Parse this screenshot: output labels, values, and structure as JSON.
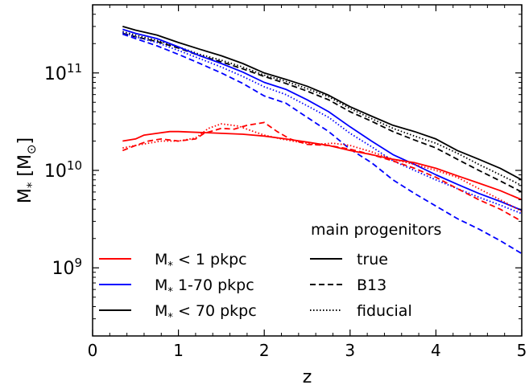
{
  "chart_data": {
    "type": "line",
    "xlabel": "z",
    "ylabel": {
      "base": "M",
      "sub": "*",
      "unit_open": " [M",
      "unit_sub": "⊙",
      "unit_close": "]"
    },
    "xlim": [
      0,
      5
    ],
    "ylim": [
      200000000.0,
      500000000000.0
    ],
    "yscale": "log",
    "grid": false,
    "xticks": [
      0,
      1,
      2,
      3,
      4,
      5
    ],
    "xtick_labels": [
      "0",
      "1",
      "2",
      "3",
      "4",
      "5"
    ],
    "yticks": [
      {
        "value": 1000000000.0,
        "base": "10",
        "exp": "9"
      },
      {
        "value": 10000000000.0,
        "base": "10",
        "exp": "10"
      },
      {
        "value": 100000000000.0,
        "base": "10",
        "exp": "11"
      }
    ],
    "colors": {
      "inner": "#ff0000",
      "outer": "#0000ff",
      "total": "#000000"
    },
    "legend_color": {
      "placement": "lower-left",
      "entries": [
        {
          "key": "inner",
          "prefix": "M",
          "sub": "*",
          "text": " < 1 pkpc"
        },
        {
          "key": "outer",
          "prefix": "M",
          "sub": "*",
          "text": " 1-70 pkpc"
        },
        {
          "key": "total",
          "prefix": "M",
          "sub": "*",
          "text": " < 70 pkpc"
        }
      ]
    },
    "legend_style": {
      "placement": "lower-right",
      "title": "main progenitors",
      "entries": [
        {
          "key": "solid",
          "label": "true"
        },
        {
          "key": "dashed",
          "label": "B13"
        },
        {
          "key": "dotted",
          "label": "fiducial"
        }
      ]
    },
    "series": [
      {
        "color": "total",
        "style": "solid",
        "x": [
          0.35,
          0.5,
          0.75,
          1.0,
          1.25,
          1.5,
          1.75,
          2.0,
          2.25,
          2.5,
          2.75,
          3.0,
          3.25,
          3.5,
          3.75,
          4.0,
          4.25,
          4.5,
          4.75,
          5.0
        ],
        "y": [
          300000000000.0,
          275000000000.0,
          245000000000.0,
          205000000000.0,
          175000000000.0,
          150000000000.0,
          125000000000.0,
          100000000000.0,
          86000000000.0,
          73000000000.0,
          59000000000.0,
          45000000000.0,
          36000000000.0,
          29000000000.0,
          25000000000.0,
          21000000000.0,
          16000000000.0,
          13000000000.0,
          10500000000.0,
          8000000000.0
        ]
      },
      {
        "color": "total",
        "style": "dashed",
        "x": [
          0.35,
          0.5,
          0.75,
          1.0,
          1.25,
          1.5,
          1.75,
          2.0,
          2.25,
          2.5,
          2.75,
          3.0,
          3.25,
          3.5,
          3.75,
          4.0,
          4.25,
          4.5,
          4.75,
          5.0
        ],
        "y": [
          255000000000.0,
          235000000000.0,
          210000000000.0,
          180000000000.0,
          150000000000.0,
          130000000000.0,
          110000000000.0,
          92000000000.0,
          78000000000.0,
          65000000000.0,
          53000000000.0,
          40000000000.0,
          32000000000.0,
          25000000000.0,
          20500000000.0,
          17000000000.0,
          13000000000.0,
          10000000000.0,
          7800000000.0,
          6000000000.0
        ]
      },
      {
        "color": "total",
        "style": "dotted",
        "x": [
          0.35,
          0.5,
          0.75,
          1.0,
          1.25,
          1.5,
          1.75,
          2.0,
          2.25,
          2.5,
          2.75,
          3.0,
          3.25,
          3.5,
          3.75,
          4.0,
          4.25,
          4.5,
          4.75,
          5.0
        ],
        "y": [
          265000000000.0,
          245000000000.0,
          215000000000.0,
          185000000000.0,
          155000000000.0,
          135000000000.0,
          115000000000.0,
          95000000000.0,
          82000000000.0,
          69000000000.0,
          57000000000.0,
          43000000000.0,
          34000000000.0,
          27000000000.0,
          22500000000.0,
          19000000000.0,
          15000000000.0,
          11500000000.0,
          9000000000.0,
          7000000000.0
        ]
      },
      {
        "color": "outer",
        "style": "solid",
        "x": [
          0.35,
          0.5,
          0.75,
          1.0,
          1.25,
          1.5,
          1.75,
          2.0,
          2.25,
          2.5,
          2.75,
          3.0,
          3.25,
          3.5,
          3.75,
          4.0,
          4.25,
          4.5,
          4.75,
          5.0
        ],
        "y": [
          280000000000.0,
          255000000000.0,
          225000000000.0,
          185000000000.0,
          150000000000.0,
          125000000000.0,
          102000000000.0,
          80000000000.0,
          68000000000.0,
          53000000000.0,
          40000000000.0,
          28000000000.0,
          20000000000.0,
          14500000000.0,
          11500000000.0,
          9000000000.0,
          7200000000.0,
          5800000000.0,
          4800000000.0,
          3900000000.0
        ]
      },
      {
        "color": "outer",
        "style": "dashed",
        "x": [
          0.35,
          0.5,
          0.75,
          1.0,
          1.25,
          1.5,
          1.75,
          2.0,
          2.25,
          2.5,
          2.75,
          3.0,
          3.25,
          3.5,
          3.75,
          4.0,
          4.25,
          4.5,
          4.75,
          5.0
        ],
        "y": [
          250000000000.0,
          225000000000.0,
          190000000000.0,
          155000000000.0,
          125000000000.0,
          100000000000.0,
          78000000000.0,
          58000000000.0,
          49000000000.0,
          35000000000.0,
          25000000000.0,
          16500000000.0,
          12000000000.0,
          8000000000.0,
          5800000000.0,
          4300000000.0,
          3200000000.0,
          2500000000.0,
          1900000000.0,
          1400000000.0
        ]
      },
      {
        "color": "outer",
        "style": "dotted",
        "x": [
          0.35,
          0.5,
          0.75,
          1.0,
          1.25,
          1.5,
          1.75,
          2.0,
          2.25,
          2.5,
          2.75,
          3.0,
          3.25,
          3.5,
          3.75,
          4.0,
          4.25,
          4.5,
          4.75,
          5.0
        ],
        "y": [
          260000000000.0,
          235000000000.0,
          205000000000.0,
          170000000000.0,
          140000000000.0,
          115000000000.0,
          92000000000.0,
          72000000000.0,
          60000000000.0,
          46000000000.0,
          35000000000.0,
          24000000000.0,
          17500000000.0,
          12500000000.0,
          10000000000.0,
          8000000000.0,
          6500000000.0,
          5300000000.0,
          4400000000.0,
          3600000000.0
        ]
      },
      {
        "color": "inner",
        "style": "solid",
        "x": [
          0.35,
          0.5,
          0.6,
          0.75,
          0.9,
          1.0,
          1.25,
          1.5,
          1.75,
          2.0,
          2.25,
          2.5,
          2.75,
          3.0,
          3.25,
          3.5,
          3.75,
          4.0,
          4.25,
          4.5,
          4.75,
          5.0
        ],
        "y": [
          20000000000.0,
          21000000000.0,
          23000000000.0,
          24000000000.0,
          25000000000.0,
          25000000000.0,
          24500000000.0,
          24000000000.0,
          23500000000.0,
          22500000000.0,
          21000000000.0,
          19500000000.0,
          18000000000.0,
          16000000000.0,
          14500000000.0,
          13000000000.0,
          12000000000.0,
          10500000000.0,
          8800000000.0,
          7400000000.0,
          6200000000.0,
          5000000000.0
        ]
      },
      {
        "color": "inner",
        "style": "dashed",
        "x": [
          0.35,
          0.5,
          0.65,
          0.8,
          1.0,
          1.2,
          1.3,
          1.5,
          1.65,
          1.8,
          2.0,
          2.15,
          2.3,
          2.5,
          2.75,
          3.0,
          3.25,
          3.5,
          3.75,
          4.0,
          4.25,
          4.5,
          4.75,
          5.0
        ],
        "y": [
          16000000000.0,
          18000000000.0,
          20000000000.0,
          21000000000.0,
          20000000000.0,
          21000000000.0,
          24000000000.0,
          27000000000.0,
          26500000000.0,
          29000000000.0,
          31000000000.0,
          25000000000.0,
          21000000000.0,
          18500000000.0,
          18000000000.0,
          16500000000.0,
          14500000000.0,
          12500000000.0,
          10500000000.0,
          8500000000.0,
          6500000000.0,
          5000000000.0,
          4000000000.0,
          3000000000.0
        ]
      },
      {
        "color": "inner",
        "style": "dotted",
        "x": [
          0.35,
          0.5,
          0.65,
          0.8,
          1.0,
          1.2,
          1.35,
          1.5,
          1.7,
          1.85,
          2.0,
          2.2,
          2.4,
          2.6,
          2.8,
          3.0,
          3.25,
          3.5,
          3.75,
          4.0,
          4.25,
          4.5,
          4.75,
          5.0
        ],
        "y": [
          17000000000.0,
          18000000000.0,
          19000000000.0,
          20000000000.0,
          20000000000.0,
          21500000000.0,
          27000000000.0,
          30000000000.0,
          28500000000.0,
          25500000000.0,
          23000000000.0,
          21000000000.0,
          19500000000.0,
          18500000000.0,
          19000000000.0,
          18000000000.0,
          15500000000.0,
          13000000000.0,
          11500000000.0,
          10000000000.0,
          8500000000.0,
          6500000000.0,
          5000000000.0,
          3800000000.0
        ]
      }
    ]
  }
}
